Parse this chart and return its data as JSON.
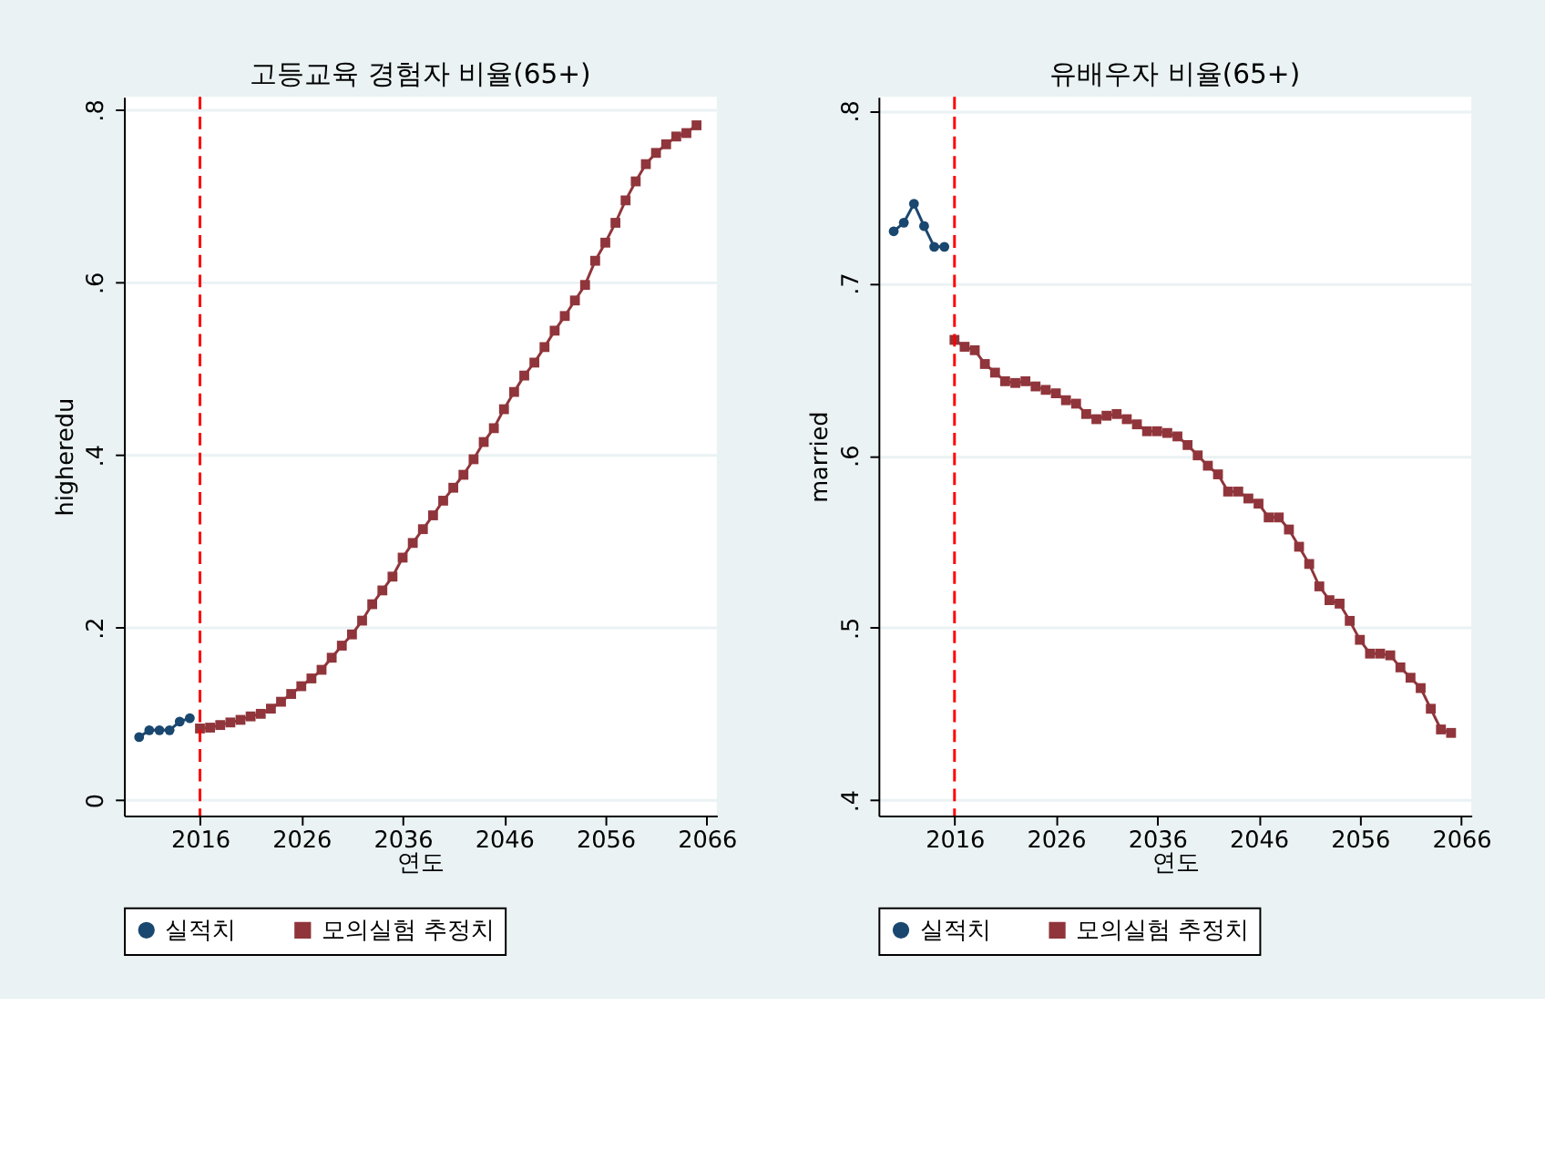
{
  "chart_data": [
    {
      "type": "line",
      "title": "고등교육 경험자 비율(65+)",
      "xlabel": "연도",
      "ylabel": "higheredu",
      "xlim": [
        2008.5,
        2067
      ],
      "xticks": [
        2016,
        2026,
        2036,
        2046,
        2056,
        2066
      ],
      "ylim": [
        -0.018,
        0.815
      ],
      "yticks": [
        0,
        {
          "value": 0.2,
          "label": ".2"
        },
        {
          "value": 0.4,
          "label": ".4"
        },
        {
          "value": 0.6,
          "label": ".6"
        },
        {
          "value": 0.8,
          "label": ".8"
        }
      ],
      "grid": "y",
      "legend": "bottom",
      "series": [
        {
          "name": "실적치",
          "color": "#1a476f",
          "marker": "circle",
          "x": [
            2010,
            2011,
            2012,
            2013,
            2014,
            2015
          ],
          "values": [
            0.073,
            0.081,
            0.081,
            0.081,
            0.091,
            0.095
          ]
        },
        {
          "name": "모의실험 추정치",
          "color": "#90353b",
          "marker": "square",
          "x": [
            2016,
            2017,
            2018,
            2019,
            2020,
            2021,
            2022,
            2023,
            2024,
            2025,
            2026,
            2027,
            2028,
            2029,
            2030,
            2031,
            2032,
            2033,
            2034,
            2035,
            2036,
            2037,
            2038,
            2039,
            2040,
            2041,
            2042,
            2043,
            2044,
            2045,
            2046,
            2047,
            2048,
            2049,
            2050,
            2051,
            2052,
            2053,
            2054,
            2055,
            2056,
            2057,
            2058,
            2059,
            2060,
            2061,
            2062,
            2063,
            2064,
            2065
          ],
          "values": [
            0.083,
            0.084,
            0.087,
            0.09,
            0.093,
            0.097,
            0.1,
            0.106,
            0.114,
            0.123,
            0.132,
            0.141,
            0.151,
            0.165,
            0.179,
            0.192,
            0.208,
            0.227,
            0.243,
            0.259,
            0.281,
            0.298,
            0.314,
            0.33,
            0.347,
            0.362,
            0.377,
            0.395,
            0.415,
            0.431,
            0.453,
            0.473,
            0.492,
            0.507,
            0.525,
            0.544,
            0.561,
            0.579,
            0.597,
            0.625,
            0.646,
            0.669,
            0.695,
            0.717,
            0.737,
            0.75,
            0.76,
            0.769,
            0.773,
            0.782
          ]
        }
      ],
      "ref_lines": [
        {
          "axis": "x",
          "value": 2016,
          "color": "#ff0000",
          "line_style": "dashed"
        }
      ]
    },
    {
      "type": "line",
      "title": "유배우자 비율(65+)",
      "xlabel": "연도",
      "ylabel": "married",
      "xlim": [
        2008.5,
        2067
      ],
      "xticks": [
        2016,
        2026,
        2036,
        2046,
        2056,
        2066
      ],
      "ylim": [
        0.391,
        0.808
      ],
      "yticks": [
        {
          "value": 0.4,
          "label": ".4"
        },
        {
          "value": 0.5,
          "label": ".5"
        },
        {
          "value": 0.6,
          "label": ".6"
        },
        {
          "value": 0.7,
          "label": ".7"
        },
        {
          "value": 0.8,
          "label": ".8"
        }
      ],
      "grid": "y",
      "legend": "bottom",
      "series": [
        {
          "name": "실적치",
          "color": "#1a476f",
          "marker": "circle",
          "x": [
            2010,
            2011,
            2012,
            2013,
            2014,
            2015
          ],
          "values": [
            0.73,
            0.735,
            0.746,
            0.733,
            0.721,
            0.721
          ]
        },
        {
          "name": "모의실험 추정치",
          "color": "#90353b",
          "marker": "square",
          "x": [
            2016,
            2017,
            2018,
            2019,
            2020,
            2021,
            2022,
            2023,
            2024,
            2025,
            2026,
            2027,
            2028,
            2029,
            2030,
            2031,
            2032,
            2033,
            2034,
            2035,
            2036,
            2037,
            2038,
            2039,
            2040,
            2041,
            2042,
            2043,
            2044,
            2045,
            2046,
            2047,
            2048,
            2049,
            2050,
            2051,
            2052,
            2053,
            2054,
            2055,
            2056,
            2057,
            2058,
            2059,
            2060,
            2061,
            2062,
            2063,
            2064,
            2065
          ],
          "values": [
            0.667,
            0.663,
            0.661,
            0.653,
            0.648,
            0.643,
            0.642,
            0.643,
            0.64,
            0.638,
            0.636,
            0.632,
            0.63,
            0.624,
            0.621,
            0.623,
            0.624,
            0.621,
            0.618,
            0.614,
            0.614,
            0.613,
            0.611,
            0.606,
            0.6,
            0.594,
            0.589,
            0.579,
            0.579,
            0.575,
            0.572,
            0.564,
            0.564,
            0.557,
            0.547,
            0.537,
            0.524,
            0.516,
            0.514,
            0.504,
            0.493,
            0.485,
            0.485,
            0.484,
            0.477,
            0.471,
            0.465,
            0.453,
            0.441,
            0.439
          ]
        }
      ],
      "ref_lines": [
        {
          "axis": "x",
          "value": 2016,
          "color": "#ff0000",
          "line_style": "dashed"
        }
      ]
    }
  ]
}
